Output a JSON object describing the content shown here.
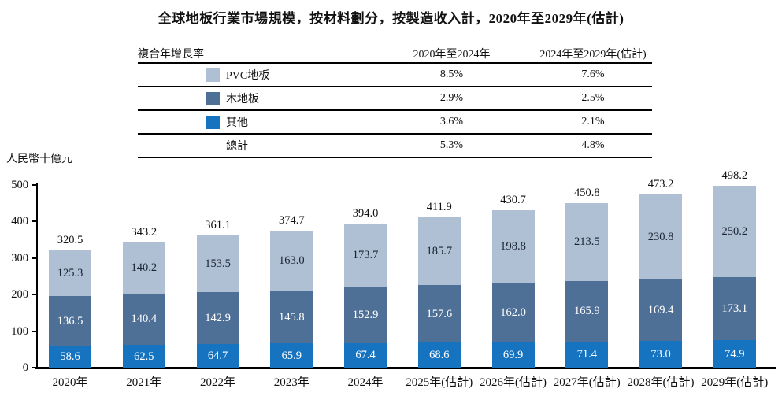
{
  "title": "全球地板行業市場規模，按材料劃分，按製造收入計，2020年至2029年(估計)",
  "table": {
    "col_headers": [
      "複合年增長率",
      "2020年至2024年",
      "2024年至2029年(估計)"
    ],
    "rows": [
      {
        "swatch": "#afc0d5",
        "label": "PVC地板",
        "cagr_2020_2024": "8.5%",
        "cagr_2024_2029": "7.6%"
      },
      {
        "swatch": "#4f7096",
        "label": "木地板",
        "cagr_2020_2024": "2.9%",
        "cagr_2024_2029": "2.5%"
      },
      {
        "swatch": "#1673c0",
        "label": "其他",
        "cagr_2020_2024": "3.6%",
        "cagr_2024_2029": "2.1%"
      },
      {
        "swatch": null,
        "label": "總計",
        "cagr_2020_2024": "5.3%",
        "cagr_2024_2029": "4.8%"
      }
    ]
  },
  "chart_data": {
    "type": "bar",
    "stacked": true,
    "title": "全球地板行業市場規模，按材料劃分，按製造收入計，2020年至2029年(估計)",
    "unit_label": "人民幣十億元",
    "xlabel": "",
    "ylabel": "人民幣十億元",
    "ylim": [
      0,
      500
    ],
    "yticks": [
      0,
      100,
      200,
      300,
      400,
      500
    ],
    "grid": false,
    "legend_position": "table-above",
    "categories": [
      "2020年",
      "2021年",
      "2022年",
      "2023年",
      "2024年",
      "2025年(估計)",
      "2026年(估計)",
      "2027年(估計)",
      "2028年(估計)",
      "2029年(估計)"
    ],
    "series": [
      {
        "name": "其他",
        "color": "#1673c0",
        "label_color": "#ffffff",
        "values": [
          58.6,
          62.5,
          64.7,
          65.9,
          67.4,
          68.6,
          69.9,
          71.4,
          73.0,
          74.9
        ]
      },
      {
        "name": "木地板",
        "color": "#4f7096",
        "label_color": "#ffffff",
        "values": [
          136.5,
          140.4,
          142.9,
          145.8,
          152.9,
          157.6,
          162.0,
          165.9,
          169.4,
          173.1
        ]
      },
      {
        "name": "PVC地板",
        "color": "#afc0d5",
        "label_color": "#1b2433",
        "values": [
          125.3,
          140.2,
          153.5,
          163.0,
          173.7,
          185.7,
          198.8,
          213.5,
          230.8,
          250.2
        ]
      }
    ],
    "totals": [
      320.5,
      343.2,
      361.1,
      374.7,
      394.0,
      411.9,
      430.7,
      450.8,
      473.2,
      498.2
    ]
  }
}
